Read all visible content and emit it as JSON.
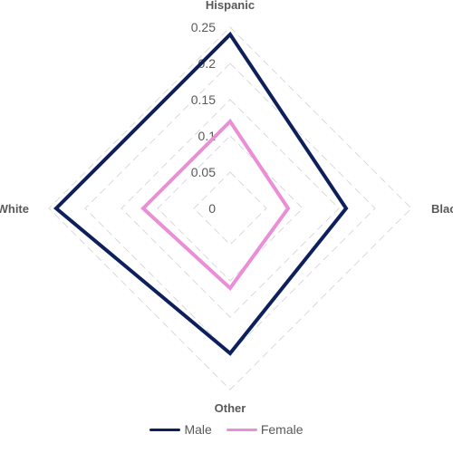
{
  "chart_data": {
    "type": "radar",
    "categories": [
      "Hispanic",
      "Black",
      "Other",
      "White"
    ],
    "series": [
      {
        "name": "Male",
        "values": [
          0.24,
          0.16,
          0.2,
          0.24
        ],
        "color": "#0d1f5c"
      },
      {
        "name": "Female",
        "values": [
          0.12,
          0.08,
          0.11,
          0.12
        ],
        "color": "#ea8fd7"
      }
    ],
    "ticks": [
      "0",
      "0.05",
      "0.1",
      "0.15",
      "0.2",
      "0.25"
    ],
    "rmax": 0.25,
    "grid": true,
    "legend": "bottom"
  }
}
